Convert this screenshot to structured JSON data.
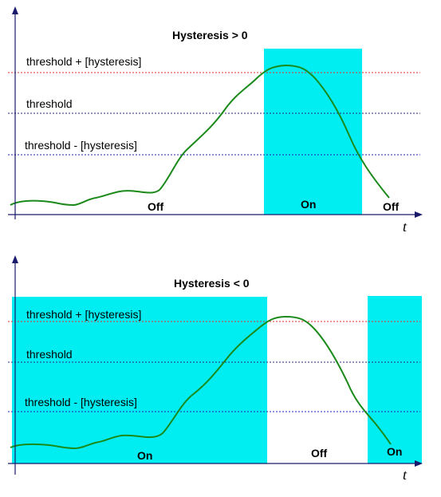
{
  "colors": {
    "on_region": "#00eef2",
    "curve": "#1a8a1a",
    "upper_line": "#e03030",
    "mid_line": "#2a2a8a",
    "lower_line": "#2424b8",
    "axis": "#1a1a6a"
  },
  "panels": [
    {
      "title": "Hysteresis > 0",
      "labels": {
        "upper": "threshold + [hysteresis]",
        "mid": "threshold",
        "lower": "threshold - [hysteresis]"
      },
      "states": [
        "Off",
        "On",
        "Off"
      ],
      "axis_label": "t"
    },
    {
      "title": "Hysteresis < 0",
      "labels": {
        "upper": "threshold + [hysteresis]",
        "mid": "threshold",
        "lower": "threshold - [hysteresis]"
      },
      "states": [
        "On",
        "Off",
        "On"
      ],
      "axis_label": "t"
    }
  ]
}
